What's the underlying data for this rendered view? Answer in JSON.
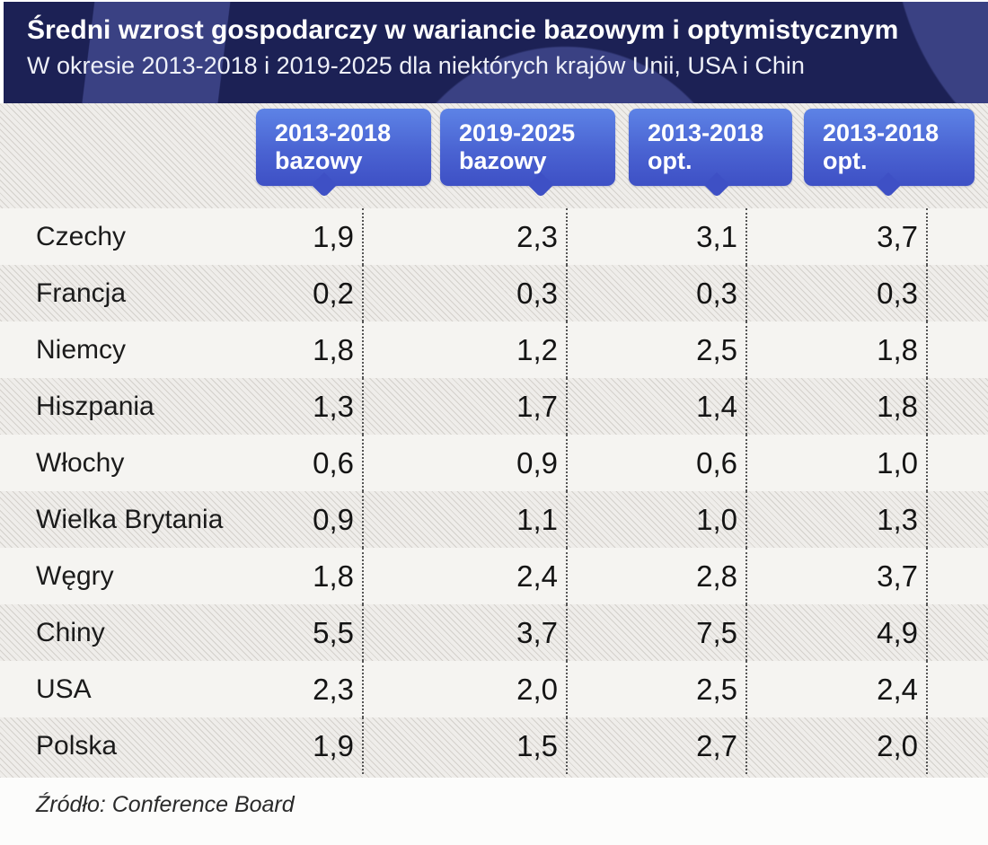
{
  "header": {
    "title": "Średni wzrost gospodarczy w wariancie bazowym i optymistycznym",
    "subtitle": "W okresie 2013-2018 i 2019-2025 dla niektórych krajów Unii, USA i Chin"
  },
  "table": {
    "columns": [
      {
        "period": "2013-2018",
        "variant": "bazowy"
      },
      {
        "period": "2019-2025",
        "variant": "bazowy"
      },
      {
        "period": "2013-2018",
        "variant": "opt."
      },
      {
        "period": "2013-2018",
        "variant": "opt."
      }
    ],
    "rows": [
      {
        "country": "Czechy",
        "values": [
          "1,9",
          "2,3",
          "3,1",
          "3,7"
        ]
      },
      {
        "country": "Francja",
        "values": [
          "0,2",
          "0,3",
          "0,3",
          "0,3"
        ]
      },
      {
        "country": "Niemcy",
        "values": [
          "1,8",
          "1,2",
          "2,5",
          "1,8"
        ]
      },
      {
        "country": "Hiszpania",
        "values": [
          "1,3",
          "1,7",
          "1,4",
          "1,8"
        ]
      },
      {
        "country": "Włochy",
        "values": [
          "0,6",
          "0,9",
          "0,6",
          "1,0"
        ]
      },
      {
        "country": "Wielka Brytania",
        "values": [
          "0,9",
          "1,1",
          "1,0",
          "1,3"
        ]
      },
      {
        "country": "Węgry",
        "values": [
          "1,8",
          "2,4",
          "2,8",
          "3,7"
        ]
      },
      {
        "country": "Chiny",
        "values": [
          "5,5",
          "3,7",
          "7,5",
          "4,9"
        ]
      },
      {
        "country": "USA",
        "values": [
          "2,3",
          "2,0",
          "2,5",
          "2,4"
        ]
      },
      {
        "country": "Polska",
        "values": [
          "1,9",
          "1,5",
          "2,7",
          "2,0"
        ]
      }
    ]
  },
  "footer": {
    "source": "Źródło: Conference Board"
  },
  "colors": {
    "header_bg": "#1c2155",
    "header_shape": "#3a4183",
    "badge_top": "#5d83e6",
    "badge_bottom": "#3e50c5",
    "row_light": "#f5f4f1",
    "row_hatch_base": "#efedea",
    "text": "#1b1b1b"
  },
  "chart_data": {
    "type": "table",
    "title": "Średni wzrost gospodarczy w wariancie bazowym i optymistycznym",
    "subtitle": "W okresie 2013-2018 i 2019-2025 dla niektórych krajów Unii, USA i Chin",
    "columns": [
      "2013-2018 bazowy",
      "2019-2025 bazowy",
      "2013-2018 opt.",
      "2013-2018 opt."
    ],
    "categories": [
      "Czechy",
      "Francja",
      "Niemcy",
      "Hiszpania",
      "Włochy",
      "Wielka Brytania",
      "Węgry",
      "Chiny",
      "USA",
      "Polska"
    ],
    "series": [
      {
        "name": "2013-2018 bazowy",
        "values": [
          1.9,
          0.2,
          1.8,
          1.3,
          0.6,
          0.9,
          1.8,
          5.5,
          2.3,
          1.9
        ]
      },
      {
        "name": "2019-2025 bazowy",
        "values": [
          2.3,
          0.3,
          1.2,
          1.7,
          0.9,
          1.1,
          2.4,
          3.7,
          2.0,
          1.5
        ]
      },
      {
        "name": "2013-2018 opt.",
        "values": [
          3.1,
          0.3,
          2.5,
          1.4,
          0.6,
          1.0,
          2.8,
          7.5,
          2.5,
          2.7
        ]
      },
      {
        "name": "2013-2018 opt. (2)",
        "values": [
          3.7,
          0.3,
          1.8,
          1.8,
          1.0,
          1.3,
          3.7,
          4.9,
          2.4,
          2.0
        ]
      }
    ],
    "source": "Źródło: Conference Board",
    "decimal_separator": ","
  }
}
